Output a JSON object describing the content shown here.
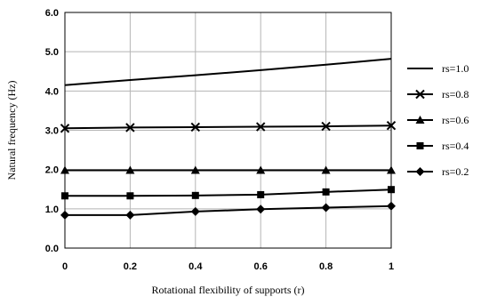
{
  "chart_data": {
    "type": "line",
    "title": "",
    "xlabel": "Rotational flexibility of supports (r)",
    "ylabel": "Natural frequency (Hz)",
    "x": [
      0,
      0.2,
      0.4,
      0.6,
      0.8,
      1
    ],
    "x_tick_labels": [
      "0",
      "0.2",
      "0.4",
      "0.6",
      "0.8",
      "1"
    ],
    "y_tick_values": [
      0,
      1,
      2,
      3,
      4,
      5,
      6
    ],
    "y_tick_labels": [
      "0.0",
      "1.0",
      "2.0",
      "3.0",
      "4.0",
      "5.0",
      "6.0"
    ],
    "xlim": [
      0,
      1
    ],
    "ylim": [
      0,
      6
    ],
    "grid": true,
    "legend_position": "right",
    "series": [
      {
        "name": "rs=1.0",
        "marker": "none",
        "values": [
          4.15,
          4.28,
          4.4,
          4.53,
          4.67,
          4.82
        ]
      },
      {
        "name": "rs=0.8",
        "marker": "cross",
        "values": [
          3.05,
          3.07,
          3.08,
          3.09,
          3.1,
          3.12
        ]
      },
      {
        "name": "rs=0.6",
        "marker": "triangle",
        "values": [
          1.98,
          1.98,
          1.98,
          1.98,
          1.98,
          1.98
        ]
      },
      {
        "name": "rs=0.4",
        "marker": "square",
        "values": [
          1.33,
          1.33,
          1.34,
          1.36,
          1.43,
          1.49
        ]
      },
      {
        "name": "rs=0.2",
        "marker": "diamond",
        "values": [
          0.84,
          0.84,
          0.93,
          0.99,
          1.03,
          1.07
        ]
      }
    ]
  }
}
